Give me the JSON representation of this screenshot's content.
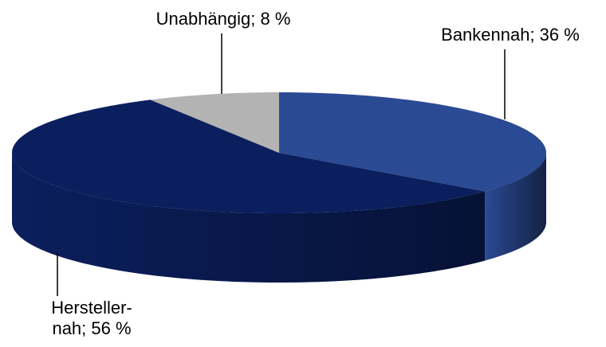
{
  "chart_data": {
    "type": "pie3d",
    "values": [
      36,
      56,
      8
    ],
    "value_labels": [
      [
        "Bankennah; 36 %"
      ],
      [
        "Hersteller-",
        "nah; 56 %"
      ],
      [
        "Unabhängig; 8 %"
      ]
    ],
    "colors": [
      "#2b4a94",
      "#0b1f5e",
      "#b3b3b3"
    ],
    "start_angle": 0,
    "direction": "clockwise"
  }
}
